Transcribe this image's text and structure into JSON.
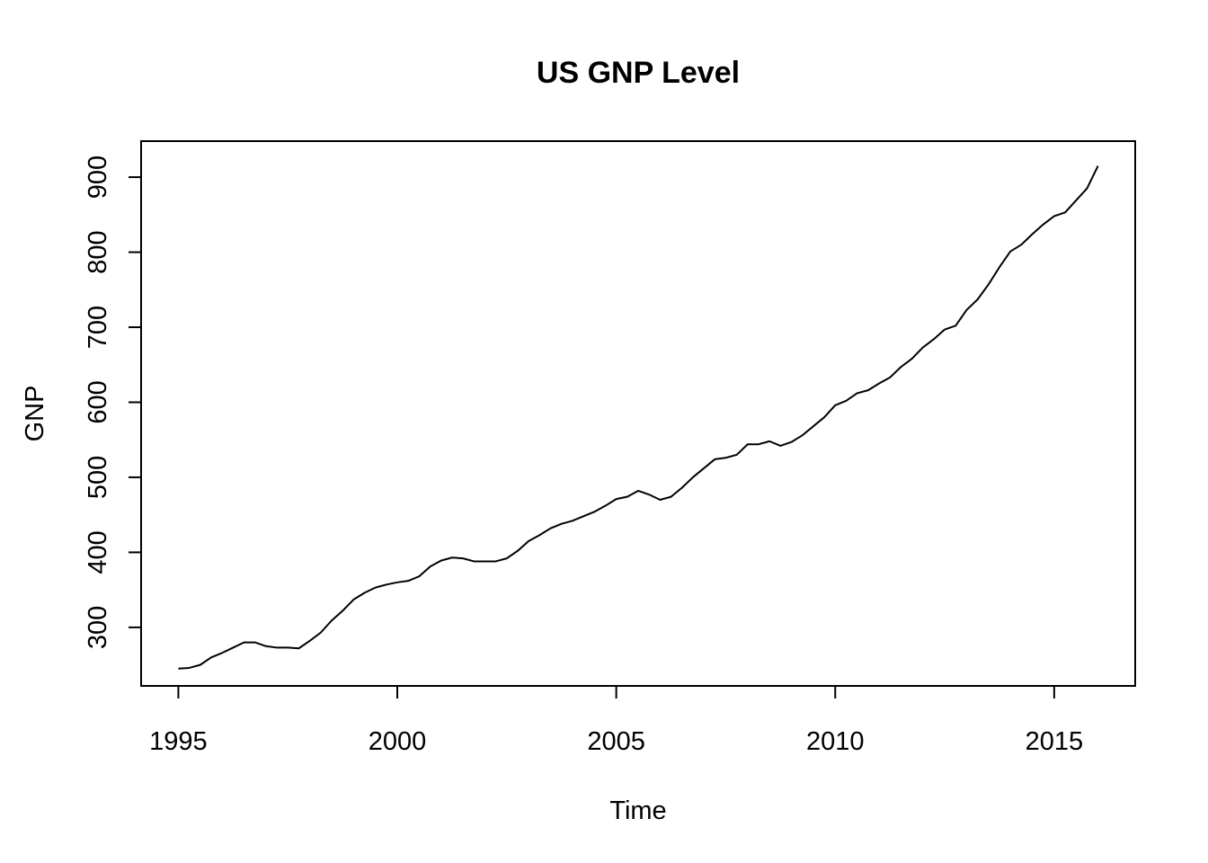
{
  "chart_data": {
    "type": "line",
    "title": "US GNP Level",
    "xlabel": "Time",
    "ylabel": "GNP",
    "xlim": [
      1994.15,
      2016.85
    ],
    "ylim": [
      222,
      948
    ],
    "x_ticks": [
      1995,
      2000,
      2005,
      2010,
      2015
    ],
    "y_ticks": [
      300,
      400,
      500,
      600,
      700,
      800,
      900
    ],
    "grid": false,
    "series": [
      {
        "x": [
          1995.0,
          1995.25,
          1995.5,
          1995.75,
          1996.0,
          1996.25,
          1996.5,
          1996.75,
          1997.0,
          1997.25,
          1997.5,
          1997.75,
          1998.0,
          1998.25,
          1998.5,
          1998.75,
          1999.0,
          1999.25,
          1999.5,
          1999.75,
          2000.0,
          2000.25,
          2000.5,
          2000.75,
          2001.0,
          2001.25,
          2001.5,
          2001.75,
          2002.0,
          2002.25,
          2002.5,
          2002.75,
          2003.0,
          2003.25,
          2003.5,
          2003.75,
          2004.0,
          2004.25,
          2004.5,
          2004.75,
          2005.0,
          2005.25,
          2005.5,
          2005.75,
          2006.0,
          2006.25,
          2006.5,
          2006.75,
          2007.0,
          2007.25,
          2007.5,
          2007.75,
          2008.0,
          2008.25,
          2008.5,
          2008.75,
          2009.0,
          2009.25,
          2009.5,
          2009.75,
          2010.0,
          2010.25,
          2010.5,
          2010.75,
          2011.0,
          2011.25,
          2011.5,
          2011.75,
          2012.0,
          2012.25,
          2012.5,
          2012.75,
          2013.0,
          2013.25,
          2013.5,
          2013.75,
          2014.0,
          2014.25,
          2014.5,
          2014.75,
          2015.0,
          2015.25,
          2015.5,
          2015.75,
          2016.0
        ],
        "values": [
          245,
          246,
          250,
          260,
          266,
          273,
          280,
          280,
          275,
          273,
          273,
          272,
          282,
          293,
          309,
          322,
          337,
          346,
          353,
          357,
          360,
          362,
          368,
          381,
          389,
          393,
          392,
          388,
          388,
          388,
          392,
          402,
          415,
          423,
          432,
          438,
          442,
          448,
          454,
          462,
          471,
          474,
          482,
          477,
          470,
          474,
          486,
          500,
          512,
          524,
          526,
          530,
          544,
          544,
          548,
          542,
          547,
          556,
          568,
          580,
          596,
          602,
          612,
          616,
          625,
          633,
          647,
          658,
          673,
          684,
          697,
          702,
          723,
          737,
          757,
          780,
          801,
          810,
          824,
          837,
          848,
          853,
          869,
          885,
          915
        ]
      }
    ]
  }
}
